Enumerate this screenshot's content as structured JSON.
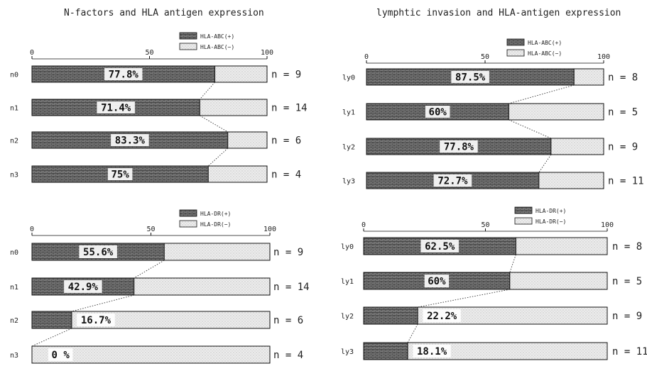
{
  "titles": {
    "left": "N-factors and HLA antigen expression",
    "right": "lymphtic invasion and HLA-antigen expression"
  },
  "legend": {
    "abc_pos": "HLA-ABC(+)",
    "abc_neg": "HLA-ABC(−)",
    "dr_pos": "HLA-DR(+)",
    "dr_neg": "HLA-DR(−)"
  },
  "colors": {
    "positive": "#6e6e6e",
    "negative": "#e2e2e2",
    "outline": "#111111"
  },
  "chart_data": [
    {
      "type": "bar",
      "stacked": true,
      "title": "N-factors and HLA antigen expression",
      "xlim": [
        0,
        100
      ],
      "ticks": [
        "0",
        "50",
        "100"
      ],
      "categories": [
        "n0",
        "n1",
        "n2",
        "n3"
      ],
      "series": [
        {
          "name": "HLA-ABC(+)",
          "values": [
            77.8,
            71.4,
            83.3,
            75
          ]
        },
        {
          "name": "HLA-ABC(−)",
          "values": [
            22.2,
            28.6,
            16.7,
            25
          ]
        }
      ],
      "labels": [
        "77.8%",
        "71.4%",
        "83.3%",
        "75%"
      ],
      "n_labels": [
        "n = 9",
        "n = 14",
        "n = 6",
        "n = 4"
      ]
    },
    {
      "type": "bar",
      "stacked": true,
      "title": "lymphtic invasion and HLA-antigen expression",
      "xlim": [
        0,
        100
      ],
      "ticks": [
        "0",
        "50",
        "100"
      ],
      "categories": [
        "ly0",
        "ly1",
        "ly2",
        "ly3"
      ],
      "series": [
        {
          "name": "HLA-ABC(+)",
          "values": [
            87.5,
            60,
            77.8,
            72.7
          ]
        },
        {
          "name": "HLA-ABC(−)",
          "values": [
            12.5,
            40,
            22.2,
            27.3
          ]
        }
      ],
      "labels": [
        "87.5%",
        "60%",
        "77.8%",
        "72.7%"
      ],
      "n_labels": [
        "n = 8",
        "n = 5",
        "n = 9",
        "n = 11"
      ]
    },
    {
      "type": "bar",
      "stacked": true,
      "xlim": [
        0,
        100
      ],
      "ticks": [
        "0",
        "50",
        "100"
      ],
      "categories": [
        "n0",
        "n1",
        "n2",
        "n3"
      ],
      "series": [
        {
          "name": "HLA-DR(+)",
          "values": [
            55.6,
            42.9,
            16.7,
            0
          ]
        },
        {
          "name": "HLA-DR(−)",
          "values": [
            44.4,
            57.1,
            83.3,
            100
          ]
        }
      ],
      "labels": [
        "55.6%",
        "42.9%",
        "16.7%",
        "0 %"
      ],
      "n_labels": [
        "n = 9",
        "n = 14",
        "n = 6",
        "n = 4"
      ]
    },
    {
      "type": "bar",
      "stacked": true,
      "xlim": [
        0,
        100
      ],
      "ticks": [
        "0",
        "50",
        "100"
      ],
      "categories": [
        "ly0",
        "ly1",
        "ly2",
        "ly3"
      ],
      "series": [
        {
          "name": "HLA-DR(+)",
          "values": [
            62.5,
            60,
            22.2,
            18.1
          ]
        },
        {
          "name": "HLA-DR(−)",
          "values": [
            37.5,
            40,
            77.8,
            81.9
          ]
        }
      ],
      "labels": [
        "62.5%",
        "60%",
        "22.2%",
        "18.1%"
      ],
      "n_labels": [
        "n = 8",
        "n = 5",
        "n = 9",
        "n = 11"
      ]
    }
  ]
}
